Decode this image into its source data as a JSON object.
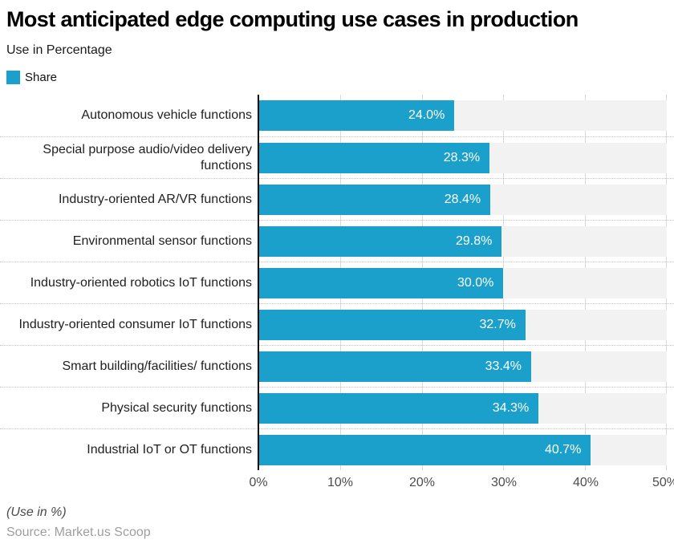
{
  "header": {
    "title": "Most anticipated edge computing use cases in production",
    "subtitle": "Use in Percentage",
    "legend": {
      "label": "Share",
      "swatch_color": "#1aa0cb"
    }
  },
  "chart_data": {
    "type": "bar",
    "orientation": "horizontal",
    "categories": [
      "Autonomous vehicle functions",
      "Special purpose audio/video delivery functions",
      "Industry-oriented AR/VR functions",
      "Environmental sensor functions",
      "Industry-oriented robotics IoT functions",
      "Industry-oriented consumer IoT functions",
      "Smart building/facilities/ functions",
      "Physical security functions",
      "Industrial IoT or OT functions"
    ],
    "values": [
      24.0,
      28.3,
      28.4,
      29.8,
      30.0,
      32.7,
      33.4,
      34.3,
      40.7
    ],
    "value_labels": [
      "24.0%",
      "28.3%",
      "28.4%",
      "29.8%",
      "30.0%",
      "32.7%",
      "33.4%",
      "34.3%",
      "40.7%"
    ],
    "series_name": "Share",
    "title": "Most anticipated edge computing use cases in production",
    "xlabel": "",
    "ylabel": "",
    "xlim": [
      0,
      50
    ],
    "x_tick_labels": [
      "0%",
      "10%",
      "20%",
      "30%",
      "40%",
      "50%"
    ],
    "grid": "vertical-on",
    "bar_color": "#1aa0cb",
    "track_color": "#f2f2f2",
    "legend_position": "top-left"
  },
  "footer": {
    "footnote": "(Use in %)",
    "source": "Source: Market.us Scoop"
  }
}
